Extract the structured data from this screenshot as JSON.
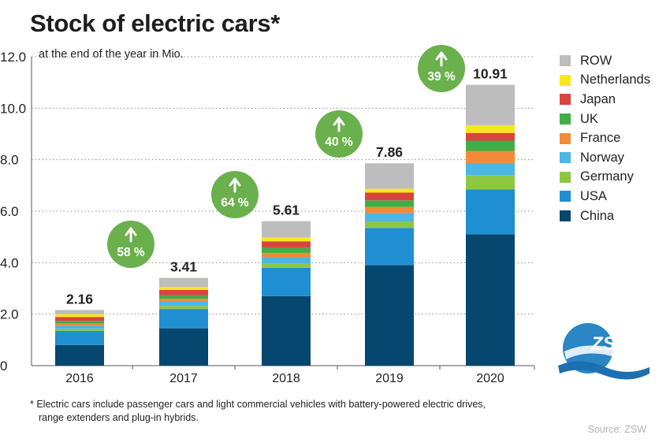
{
  "title": "Stock of electric cars*",
  "subtitle": "at the end of the year in Mio.",
  "footnote": {
    "line1": "* Electric cars include passenger cars and light commercial vehicles with battery-powered electric drives,",
    "line2": "range extenders and plug-in hybrids."
  },
  "source": "Source: ZSW",
  "logo_text": "ZSW",
  "colors": {
    "growth_badge": "#6ab04c",
    "ROW": "#bdbdbd",
    "Netherlands": "#f6e81c",
    "Japan": "#d9443e",
    "UK": "#3fae49",
    "France": "#f28a3a",
    "Norway": "#4bb6e8",
    "Germany": "#8dc63f",
    "USA": "#1f8fd1",
    "China": "#05476e"
  },
  "chart_data": {
    "type": "bar",
    "stacked": true,
    "categories": [
      "2016",
      "2017",
      "2018",
      "2019",
      "2020"
    ],
    "ylim": [
      0,
      12
    ],
    "yticks": [
      "0",
      "2.0",
      "4.0",
      "6.0",
      "8.0",
      "10.0",
      "12.0"
    ],
    "grid": "dotted horizontal",
    "legend": "right",
    "totals": [
      "2.16",
      "3.41",
      "5.61",
      "7.86",
      "10.91"
    ],
    "growth": [
      {
        "between": [
          "2016",
          "2017"
        ],
        "label": "58 %"
      },
      {
        "between": [
          "2017",
          "2018"
        ],
        "label": "64 %"
      },
      {
        "between": [
          "2018",
          "2019"
        ],
        "label": "40 %"
      },
      {
        "between": [
          "2019",
          "2020"
        ],
        "label": "39 %"
      }
    ],
    "series": [
      {
        "name": "China",
        "values": [
          0.8,
          1.45,
          2.7,
          3.9,
          5.1
        ]
      },
      {
        "name": "USA",
        "values": [
          0.55,
          0.75,
          1.1,
          1.45,
          1.75
        ]
      },
      {
        "name": "Germany",
        "values": [
          0.08,
          0.12,
          0.16,
          0.25,
          0.55
        ]
      },
      {
        "name": "Norway",
        "values": [
          0.12,
          0.16,
          0.25,
          0.33,
          0.47
        ]
      },
      {
        "name": "France",
        "values": [
          0.09,
          0.12,
          0.17,
          0.24,
          0.47
        ]
      },
      {
        "name": "UK",
        "values": [
          0.1,
          0.14,
          0.2,
          0.25,
          0.4
        ]
      },
      {
        "name": "Japan",
        "values": [
          0.15,
          0.2,
          0.25,
          0.3,
          0.3
        ]
      },
      {
        "name": "Netherlands",
        "values": [
          0.11,
          0.12,
          0.15,
          0.15,
          0.3
        ]
      },
      {
        "name": "ROW",
        "values": [
          0.16,
          0.35,
          0.63,
          0.99,
          1.57
        ]
      }
    ]
  }
}
